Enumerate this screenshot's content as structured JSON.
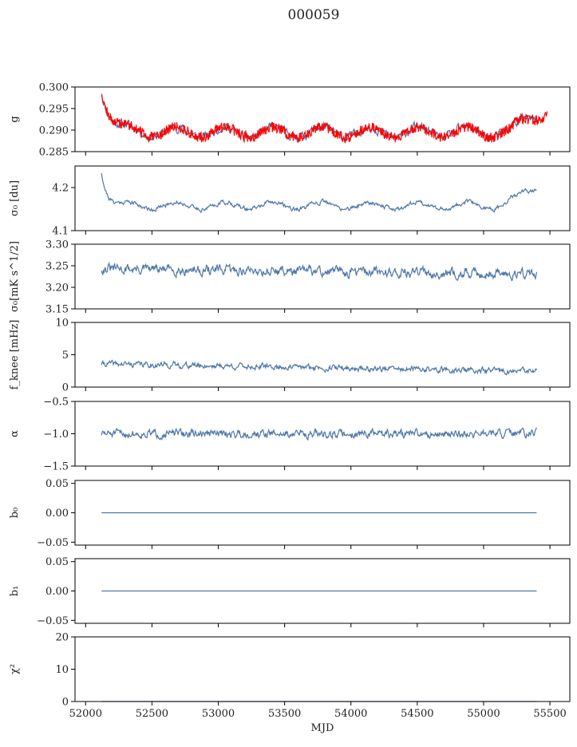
{
  "figure": {
    "title": "000059"
  },
  "colors": {
    "series": "#4e77a8",
    "overlay": "#ff0000",
    "frame": "#000000"
  },
  "chart_data": [
    {
      "type": "line",
      "ylabel": "g",
      "ylim": [
        0.285,
        0.3
      ],
      "yticks": [
        "0.285",
        "0.290",
        "0.295",
        "0.300"
      ],
      "grid": false,
      "series": [
        {
          "kind": "base",
          "shape": "g_curve",
          "x_range": [
            52120,
            55400
          ],
          "noise": 0.0008,
          "seed": 11
        },
        {
          "kind": "overlay",
          "shape": "g_curve",
          "x_range": [
            52120,
            55480
          ],
          "band": 0.0012,
          "seed": 12
        }
      ]
    },
    {
      "type": "line",
      "ylabel": "σ₀ [du]",
      "ylim": [
        4.1,
        4.25
      ],
      "yticks": [
        "4.1",
        "4.2"
      ],
      "grid": false,
      "series": [
        {
          "kind": "base",
          "shape": "sigma_curve",
          "x_range": [
            52120,
            55400
          ],
          "noise": 0.004,
          "seed": 21
        }
      ]
    },
    {
      "type": "line",
      "ylabel": "σ₀[mK s^1/2]",
      "ylim": [
        3.15,
        3.3
      ],
      "yticks": [
        "3.15",
        "3.20",
        "3.25",
        "3.30"
      ],
      "grid": false,
      "series": [
        {
          "kind": "base",
          "shape": "mk_curve",
          "x_range": [
            52120,
            55400
          ],
          "noise": 0.009,
          "seed": 31
        }
      ]
    },
    {
      "type": "line",
      "ylabel": "f_knee [mHz]",
      "ylim": [
        0,
        10
      ],
      "yticks": [
        "0",
        "5",
        "10"
      ],
      "grid": false,
      "series": [
        {
          "kind": "base",
          "shape": "knee_curve",
          "x_range": [
            52120,
            55400
          ],
          "noise": 0.35,
          "seed": 41
        }
      ]
    },
    {
      "type": "line",
      "ylabel": "α",
      "ylim": [
        -1.5,
        -0.5
      ],
      "yticks": [
        "−1.5",
        "−1.0",
        "−0.5"
      ],
      "grid": false,
      "series": [
        {
          "kind": "base",
          "shape": "alpha_curve",
          "x_range": [
            52120,
            55400
          ],
          "noise": 0.05,
          "seed": 51
        }
      ]
    },
    {
      "type": "line",
      "ylabel": "b₀",
      "ylim": [
        -0.055,
        0.055
      ],
      "yticks": [
        "−0.05",
        "0.00",
        "0.05"
      ],
      "grid": false,
      "series": [
        {
          "kind": "base",
          "shape": "flat",
          "x_range": [
            52120,
            55400
          ],
          "value": 0.0
        }
      ]
    },
    {
      "type": "line",
      "ylabel": "b₁",
      "ylim": [
        -0.055,
        0.055
      ],
      "yticks": [
        "−0.05",
        "0.00",
        "0.05"
      ],
      "grid": false,
      "series": [
        {
          "kind": "base",
          "shape": "flat",
          "x_range": [
            52120,
            55400
          ],
          "value": 0.0
        }
      ]
    },
    {
      "type": "line",
      "ylabel": "χ²",
      "xlabel": "MJD",
      "ylim": [
        0,
        20
      ],
      "yticks": [
        "0",
        "10",
        "20"
      ],
      "xticks": [
        "52000",
        "52500",
        "53000",
        "53500",
        "54000",
        "54500",
        "55000",
        "55500"
      ],
      "grid": false,
      "series": [
        {
          "kind": "base",
          "shape": "flat",
          "x_range": [
            52120,
            55400
          ],
          "value": 0.0
        }
      ]
    }
  ],
  "xlim": [
    51920,
    55650
  ],
  "xtick_values": [
    52000,
    52500,
    53000,
    53500,
    54000,
    54500,
    55000,
    55500
  ]
}
